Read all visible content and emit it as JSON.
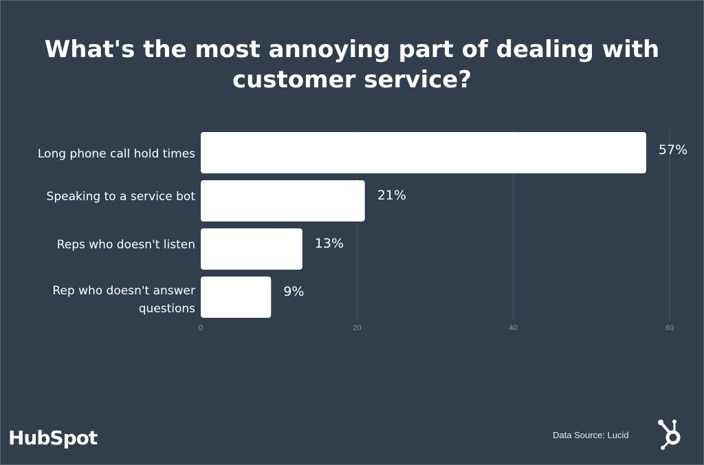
{
  "chart_data": {
    "type": "bar",
    "orientation": "horizontal",
    "title": "What's the most annoying part of dealing with customer service?",
    "categories": [
      "Long phone call hold times",
      "Speaking to a service bot",
      "Reps who doesn't listen",
      "Rep who doesn't answer questions"
    ],
    "values": [
      57,
      21,
      13,
      9
    ],
    "data_labels": [
      "57%",
      "21%",
      "13%",
      "9%"
    ],
    "xlim": [
      0,
      60
    ],
    "xticks": [
      0,
      20,
      40,
      60
    ],
    "grid": true,
    "colors": {
      "background": "#323e4e",
      "bar": "#ffffff",
      "grid": "#4a5566",
      "tick": "#8a94a2"
    }
  },
  "footer": {
    "source": "Data Source: Lucid",
    "brand": "HubSpot"
  }
}
